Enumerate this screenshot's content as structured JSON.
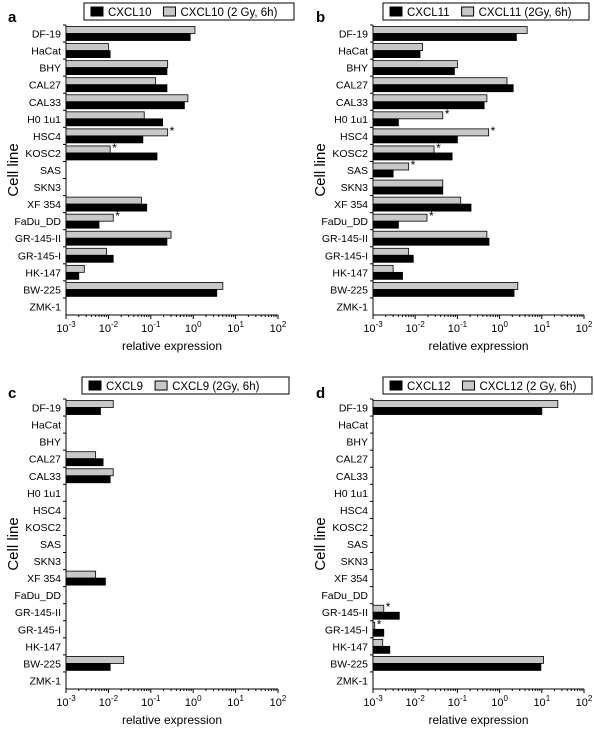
{
  "panels": [
    {
      "letter": "a",
      "legend": {
        "dark": "CXCL10",
        "light": "CXCL10 (2 Gy, 6h)"
      },
      "ylabel": "Cell line",
      "xlabel": "relative expression"
    },
    {
      "letter": "b",
      "legend": {
        "dark": "CXCL11",
        "light": "CXCL11 (2Gy, 6h)"
      },
      "ylabel": "Cell line",
      "xlabel": "relative expression"
    },
    {
      "letter": "c",
      "legend": {
        "dark": "CXCL9",
        "light": "CXCL9 (2Gy, 6h)"
      },
      "ylabel": "Cell line",
      "xlabel": "relative expression"
    },
    {
      "letter": "d",
      "legend": {
        "dark": "CXCL12",
        "light": "CXCL12 (2 Gy, 6h)"
      },
      "ylabel": "Cell line",
      "xlabel": "relative expression"
    }
  ],
  "chart_data": [
    {
      "type": "bar",
      "orientation": "horizontal",
      "xscale": "log",
      "xlim": [
        0.001,
        100
      ],
      "xticks": [
        "10-3",
        "10-2",
        "10-1",
        "100",
        "101",
        "102"
      ],
      "categories": [
        "DF-19",
        "HaCat",
        "BHY",
        "CAL27",
        "CAL33",
        "H0 1u1",
        "HSC4",
        "KOSC2",
        "SAS",
        "SKN3",
        "XF 354",
        "FaDu_DD",
        "GR-145-II",
        "GR-145-I",
        "HK-147",
        "BW-225",
        "ZMK-1"
      ],
      "series": [
        {
          "name": "CXCL10",
          "color": "#000000",
          "values": [
            0.85,
            0.011,
            0.24,
            0.24,
            0.62,
            0.19,
            0.065,
            0.14,
            null,
            null,
            0.08,
            0.006,
            0.24,
            0.013,
            0.002,
            3.6,
            null
          ]
        },
        {
          "name": "CXCL10 (2 Gy, 6h)",
          "color": "#c8c8c8",
          "values": [
            1.1,
            0.01,
            0.25,
            0.13,
            0.75,
            0.07,
            0.25,
            0.011,
            null,
            null,
            0.06,
            0.013,
            0.3,
            0.009,
            0.0027,
            5.0,
            null
          ]
        }
      ],
      "significance": [
        null,
        null,
        null,
        null,
        null,
        null,
        "*",
        "*",
        null,
        null,
        null,
        "*",
        null,
        null,
        null,
        null,
        null
      ],
      "title": "",
      "xlabel": "relative expression",
      "ylabel": "Cell line",
      "grid": false,
      "legend_position": "top"
    },
    {
      "type": "bar",
      "orientation": "horizontal",
      "xscale": "log",
      "xlim": [
        0.001,
        100
      ],
      "xticks": [
        "10-3",
        "10-2",
        "10-1",
        "100",
        "101",
        "102"
      ],
      "categories": [
        "DF-19",
        "HaCat",
        "BHY",
        "CAL27",
        "CAL33",
        "H0 1u1",
        "HSC4",
        "KOSC2",
        "SAS",
        "SKN3",
        "XF 354",
        "FaDu_DD",
        "GR-145-II",
        "GR-145-I",
        "HK-147",
        "BW-225",
        "ZMK-1"
      ],
      "series": [
        {
          "name": "CXCL11",
          "color": "#000000",
          "values": [
            2.5,
            0.013,
            0.085,
            2.1,
            0.43,
            0.004,
            0.1,
            0.075,
            0.003,
            0.045,
            0.21,
            0.004,
            0.56,
            0.009,
            0.005,
            2.2,
            null
          ]
        },
        {
          "name": "CXCL11 (2Gy, 6h)",
          "color": "#c8c8c8",
          "values": [
            4.5,
            0.015,
            0.1,
            1.5,
            0.5,
            0.045,
            0.55,
            0.028,
            0.007,
            0.045,
            0.12,
            0.019,
            0.5,
            0.007,
            0.003,
            2.7,
            null
          ]
        }
      ],
      "significance": [
        null,
        null,
        null,
        null,
        null,
        "*",
        "*",
        "*",
        "*",
        null,
        null,
        "*",
        null,
        null,
        null,
        null,
        null
      ],
      "title": "",
      "xlabel": "relative expression",
      "ylabel": "Cell line",
      "grid": false,
      "legend_position": "top"
    },
    {
      "type": "bar",
      "orientation": "horizontal",
      "xscale": "log",
      "xlim": [
        0.001,
        100
      ],
      "xticks": [
        "10-3",
        "10-2",
        "10-1",
        "100",
        "101",
        "102"
      ],
      "categories": [
        "DF-19",
        "HaCat",
        "BHY",
        "CAL27",
        "CAL33",
        "H0 1u1",
        "HSC4",
        "KOSC2",
        "SAS",
        "SKN3",
        "XF 354",
        "FaDu_DD",
        "GR-145-II",
        "GR-145-I",
        "HK-147",
        "BW-225",
        "ZMK-1"
      ],
      "series": [
        {
          "name": "CXCL9",
          "color": "#000000",
          "values": [
            0.0065,
            null,
            null,
            0.0075,
            0.011,
            null,
            null,
            null,
            null,
            null,
            0.0085,
            null,
            null,
            null,
            null,
            0.011,
            null
          ]
        },
        {
          "name": "CXCL9 (2Gy, 6h)",
          "color": "#c8c8c8",
          "values": [
            0.013,
            null,
            null,
            0.005,
            0.013,
            null,
            null,
            null,
            null,
            null,
            0.005,
            null,
            null,
            null,
            null,
            0.023,
            null
          ]
        }
      ],
      "significance": [
        null,
        null,
        null,
        null,
        null,
        null,
        null,
        null,
        null,
        null,
        null,
        null,
        null,
        null,
        null,
        null,
        null
      ],
      "title": "",
      "xlabel": "relative expression",
      "ylabel": "Cell line",
      "grid": false,
      "legend_position": "top"
    },
    {
      "type": "bar",
      "orientation": "horizontal",
      "xscale": "log",
      "xlim": [
        0.001,
        100
      ],
      "xticks": [
        "10-3",
        "10-2",
        "10-1",
        "100",
        "101",
        "102"
      ],
      "categories": [
        "DF-19",
        "HaCat",
        "BHY",
        "CAL27",
        "CAL33",
        "H0 1u1",
        "HSC4",
        "KOSC2",
        "SAS",
        "SKN3",
        "XF 354",
        "FaDu_DD",
        "GR-145-II",
        "GR-145-I",
        "HK-147",
        "BW-225",
        "ZMK-1"
      ],
      "series": [
        {
          "name": "CXCL12",
          "color": "#000000",
          "values": [
            10,
            null,
            null,
            null,
            null,
            null,
            null,
            null,
            null,
            null,
            null,
            null,
            0.0042,
            0.0018,
            0.0025,
            9.5,
            null
          ]
        },
        {
          "name": "CXCL12 (2 Gy, 6h)",
          "color": "#c8c8c8",
          "values": [
            24,
            null,
            null,
            null,
            null,
            null,
            null,
            null,
            null,
            null,
            null,
            null,
            0.0018,
            0.0011,
            0.0017,
            11,
            null
          ]
        }
      ],
      "significance": [
        null,
        null,
        null,
        null,
        null,
        null,
        null,
        null,
        null,
        null,
        null,
        null,
        "*",
        "*",
        null,
        null,
        null
      ],
      "title": "",
      "xlabel": "relative expression",
      "ylabel": "Cell line",
      "grid": false,
      "legend_position": "top"
    }
  ]
}
